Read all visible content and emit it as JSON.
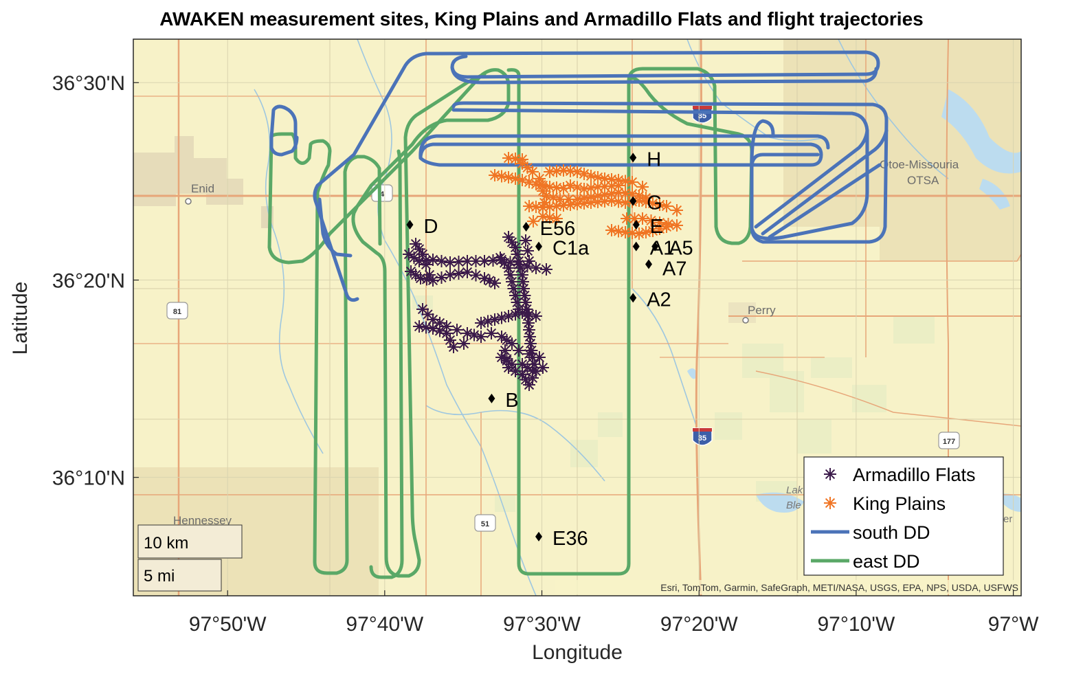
{
  "chart_data": {
    "type": "map",
    "title": "AWAKEN measurement sites, King Plains and Armadillo Flats and flight trajectories",
    "xlabel": "Longitude",
    "ylabel": "Latitude",
    "xlim": [
      -97.9333,
      -96.9917
    ],
    "ylim": [
      36.0667,
      36.5367
    ],
    "x_ticks": [
      -97.8333,
      -97.6667,
      -97.5,
      -97.3333,
      -97.1667,
      -97.0
    ],
    "x_tick_labels": [
      "97°50'W",
      "97°40'W",
      "97°30'W",
      "97°20'W",
      "97°10'W",
      "97°W"
    ],
    "y_ticks": [
      36.5,
      36.3333,
      36.1667
    ],
    "y_tick_labels": [
      "36°30'N",
      "36°20'N",
      "36°10'N"
    ],
    "grid": true,
    "legend_position": "bottom-right",
    "legend": [
      {
        "label": "Armadillo Flats",
        "marker": "asterisk",
        "color": "#3b1a4a"
      },
      {
        "label": "King Plains",
        "marker": "asterisk",
        "color": "#f07524"
      },
      {
        "label": "south DD",
        "marker": "line",
        "color": "#4b73b8"
      },
      {
        "label": "east DD",
        "marker": "line",
        "color": "#5aa867"
      }
    ],
    "sites": [
      {
        "name": "H",
        "lon": -97.4033,
        "lat": 36.4367
      },
      {
        "name": "G",
        "lon": -97.4033,
        "lat": 36.4,
        "pos": "right"
      },
      {
        "name": "E",
        "lon": -97.4,
        "lat": 36.38,
        "pos": "right"
      },
      {
        "name": "A1",
        "lon": -97.4,
        "lat": 36.3617,
        "pos": "right"
      },
      {
        "name": "A5",
        "lon": -97.38,
        "lat": 36.3617,
        "pos": "right"
      },
      {
        "name": "A7",
        "lon": -97.3867,
        "lat": 36.3467,
        "pos": "below-right"
      },
      {
        "name": "A2",
        "lon": -97.4033,
        "lat": 36.3183,
        "pos": "right"
      },
      {
        "name": "D",
        "lon": -97.64,
        "lat": 36.38
      },
      {
        "name": "E56",
        "lon": -97.5167,
        "lat": 36.3783
      },
      {
        "name": "C1a",
        "lon": -97.5033,
        "lat": 36.3617
      },
      {
        "name": "B",
        "lon": -97.5533,
        "lat": 36.2333
      },
      {
        "name": "E36",
        "lon": -97.5033,
        "lat": 36.1167
      }
    ],
    "map_labels": [
      "Enid",
      "Perry",
      "Hennessey",
      "Otoe-Missouria",
      "OTSA",
      "Lak",
      "Ble",
      "er"
    ],
    "route_shields": [
      "81",
      "51",
      "177",
      "35",
      "35",
      "4"
    ],
    "scale_bar": [
      "10 km",
      "5 mi"
    ],
    "attribution": "Esri, TomTom, Garmin, SafeGraph, METI/NASA, USGS, EPA, NPS, USDA, USFWS"
  }
}
